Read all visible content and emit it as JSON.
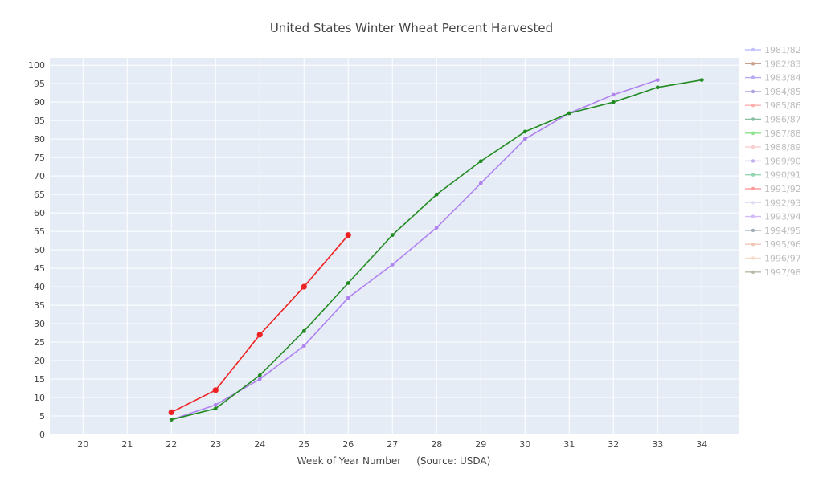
{
  "chart_data": {
    "type": "line",
    "title": "United States Winter Wheat Percent Harvested",
    "xlabel": "Week of Year Number     (Source: USDA)",
    "ylabel": "",
    "xlim": [
      19.25,
      34.85
    ],
    "ylim": [
      0,
      102
    ],
    "x_ticks": [
      20,
      21,
      22,
      23,
      24,
      25,
      26,
      27,
      28,
      29,
      30,
      31,
      32,
      33,
      34
    ],
    "y_ticks": [
      0,
      5,
      10,
      15,
      20,
      25,
      30,
      35,
      40,
      45,
      50,
      55,
      60,
      65,
      70,
      75,
      80,
      85,
      90,
      95,
      100
    ],
    "grid": true,
    "legend_position": "right",
    "series": [
      {
        "name": "1981/82",
        "color": "#8f8fff",
        "x": [],
        "y": []
      },
      {
        "name": "1982/83",
        "color": "#a0522d",
        "x": [],
        "y": []
      },
      {
        "name": "1983/84",
        "color": "#7b68ee",
        "x": [],
        "y": []
      },
      {
        "name": "1984/85",
        "color": "#6a5acd",
        "x": [],
        "y": []
      },
      {
        "name": "1985/86",
        "color": "#ff6b6b",
        "x": [],
        "y": []
      },
      {
        "name": "1986/87",
        "color": "#2e8b57",
        "x": [],
        "y": []
      },
      {
        "name": "1987/88",
        "color": "#32cd32",
        "x": [],
        "y": []
      },
      {
        "name": "1988/89",
        "color": "#f4a6a6",
        "x": [],
        "y": []
      },
      {
        "name": "1989/90",
        "color": "#9370db",
        "x": [],
        "y": []
      },
      {
        "name": "1990/91",
        "color": "#3cb371",
        "x": [],
        "y": []
      },
      {
        "name": "1991/92",
        "color": "#ff4d4d",
        "x": [],
        "y": []
      },
      {
        "name": "1992/93",
        "color": "#c8c8e8",
        "x": [],
        "y": []
      },
      {
        "name": "1993/94",
        "color": "#b083f0",
        "x": [
          22,
          23,
          24,
          25,
          26,
          27,
          28,
          29,
          30,
          31,
          32,
          33
        ],
        "y": [
          4,
          8,
          15,
          24,
          37,
          46,
          56,
          68,
          80,
          87,
          92,
          96
        ]
      },
      {
        "name": "1994/95",
        "color": "#556b7f",
        "x": [],
        "y": []
      },
      {
        "name": "1995/96",
        "color": "#e9967a",
        "x": [],
        "y": []
      },
      {
        "name": "1996/97",
        "color": "#f0c0a0",
        "x": [],
        "y": []
      },
      {
        "name": "1997/98",
        "color": "#808060",
        "x": [],
        "y": []
      },
      {
        "name": "",
        "color": "#228b22",
        "x": [
          22,
          23,
          24,
          25,
          26,
          27,
          28,
          29,
          30,
          31,
          32,
          33,
          34
        ],
        "y": [
          4,
          7,
          16,
          28,
          41,
          54,
          65,
          74,
          82,
          87,
          90,
          94,
          96
        ]
      },
      {
        "name": "",
        "color": "#ee2222",
        "x": [
          22,
          23,
          24,
          25,
          26
        ],
        "y": [
          6,
          12,
          27,
          40,
          54
        ]
      }
    ]
  }
}
